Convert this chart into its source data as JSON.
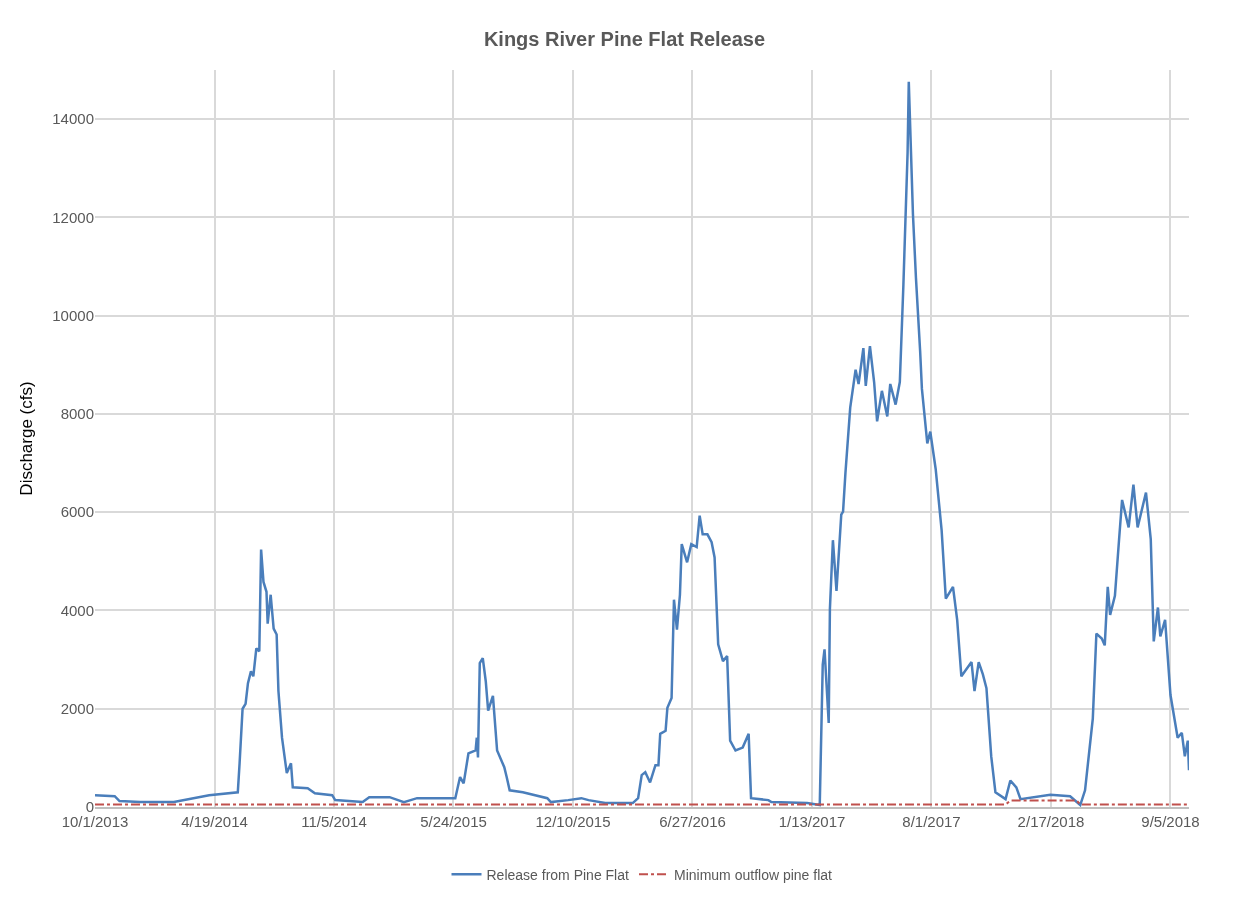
{
  "chart_data": {
    "type": "line",
    "title": "Kings River Pine Flat Release",
    "ylabel": "Discharge (cfs)",
    "xlim": [
      "2013-10-01",
      "2018-10-06"
    ],
    "ylim": [
      0,
      15000
    ],
    "xticks": [
      {
        "value": "2013-10-01",
        "label": "10/1/2013"
      },
      {
        "value": "2014-04-19",
        "label": "4/19/2014"
      },
      {
        "value": "2014-11-05",
        "label": "11/5/2014"
      },
      {
        "value": "2015-05-24",
        "label": "5/24/2015"
      },
      {
        "value": "2015-12-10",
        "label": "12/10/2015"
      },
      {
        "value": "2016-06-27",
        "label": "6/27/2016"
      },
      {
        "value": "2017-01-13",
        "label": "1/13/2017"
      },
      {
        "value": "2017-08-01",
        "label": "8/1/2017"
      },
      {
        "value": "2018-02-17",
        "label": "2/17/2018"
      },
      {
        "value": "2018-09-05",
        "label": "9/5/2018"
      }
    ],
    "yticks": [
      0,
      2000,
      4000,
      6000,
      8000,
      10000,
      12000,
      14000
    ],
    "grid": true,
    "legend": "bottom",
    "series": [
      {
        "name": "Release from Pine Flat",
        "color": "#4a7ebb",
        "line_style": "solid",
        "x": [
          "2013-10-01",
          "2013-11-03",
          "2013-11-11",
          "2013-12-16",
          "2014-02-10",
          "2014-04-10",
          "2014-05-28",
          "2014-05-31",
          "2014-06-05",
          "2014-06-10",
          "2014-06-14",
          "2014-06-19",
          "2014-06-23",
          "2014-06-28",
          "2014-07-03",
          "2014-07-06",
          "2014-07-10",
          "2014-07-15",
          "2014-07-17",
          "2014-07-22",
          "2014-07-27",
          "2014-08-01",
          "2014-08-04",
          "2014-08-10",
          "2014-08-18",
          "2014-08-25",
          "2014-08-28",
          "2014-09-22",
          "2014-10-04",
          "2014-11-02",
          "2014-11-07",
          "2014-12-23",
          "2015-01-03",
          "2015-02-06",
          "2015-03-02",
          "2015-03-24",
          "2015-05-27",
          "2015-06-04",
          "2015-06-10",
          "2015-06-18",
          "2015-06-30",
          "2015-07-02",
          "2015-07-04",
          "2015-07-07",
          "2015-07-12",
          "2015-07-17",
          "2015-07-21",
          "2015-07-29",
          "2015-08-05",
          "2015-08-17",
          "2015-08-21",
          "2015-08-26",
          "2015-09-17",
          "2015-10-28",
          "2015-11-03",
          "2015-12-02",
          "2015-12-24",
          "2016-01-05",
          "2016-02-02",
          "2016-03-19",
          "2016-03-28",
          "2016-04-03",
          "2016-04-09",
          "2016-04-17",
          "2016-04-26",
          "2016-05-01",
          "2016-05-04",
          "2016-05-13",
          "2016-05-16",
          "2016-05-23",
          "2016-05-27",
          "2016-06-01",
          "2016-06-06",
          "2016-06-09",
          "2016-06-18",
          "2016-06-25",
          "2016-07-04",
          "2016-07-09",
          "2016-07-14",
          "2016-07-22",
          "2016-07-29",
          "2016-08-03",
          "2016-08-09",
          "2016-08-17",
          "2016-08-24",
          "2016-08-29",
          "2016-09-07",
          "2016-09-19",
          "2016-09-29",
          "2016-10-03",
          "2016-11-01",
          "2016-11-06",
          "2017-01-05",
          "2017-01-26",
          "2017-01-31",
          "2017-02-03",
          "2017-02-10",
          "2017-02-12",
          "2017-02-17",
          "2017-02-23",
          "2017-03-03",
          "2017-03-06",
          "2017-03-10",
          "2017-03-18",
          "2017-03-27",
          "2017-04-01",
          "2017-04-09",
          "2017-04-13",
          "2017-04-20",
          "2017-04-27",
          "2017-05-02",
          "2017-05-10",
          "2017-05-19",
          "2017-05-24",
          "2017-06-02",
          "2017-06-09",
          "2017-06-15",
          "2017-06-22",
          "2017-06-24",
          "2017-07-01",
          "2017-07-06",
          "2017-07-13",
          "2017-07-16",
          "2017-07-25",
          "2017-07-30",
          "2017-08-08",
          "2017-08-18",
          "2017-08-25",
          "2017-09-06",
          "2017-09-13",
          "2017-09-20",
          "2017-10-07",
          "2017-10-12",
          "2017-10-19",
          "2017-10-26",
          "2017-11-01",
          "2017-11-09",
          "2017-11-16",
          "2017-12-03",
          "2017-12-11",
          "2017-12-21",
          "2017-12-28",
          "2018-02-16",
          "2018-03-21",
          "2018-04-07",
          "2018-04-15",
          "2018-04-28",
          "2018-05-04",
          "2018-05-13",
          "2018-05-18",
          "2018-05-23",
          "2018-05-27",
          "2018-06-04",
          "2018-06-11",
          "2018-06-16",
          "2018-06-27",
          "2018-07-05",
          "2018-07-12",
          "2018-07-26",
          "2018-08-03",
          "2018-08-08",
          "2018-08-15",
          "2018-08-19",
          "2018-08-27",
          "2018-09-05",
          "2018-09-17",
          "2018-09-24",
          "2018-09-29",
          "2018-10-04",
          "2018-10-06"
        ],
        "values": [
          240,
          220,
          120,
          100,
          100,
          240,
          300,
          890,
          2000,
          2100,
          2520,
          2760,
          2660,
          3230,
          3170,
          5240,
          4580,
          4380,
          3730,
          4320,
          3630,
          3510,
          2360,
          1410,
          690,
          890,
          400,
          380,
          280,
          240,
          140,
          100,
          200,
          200,
          100,
          180,
          180,
          610,
          480,
          1090,
          1150,
          1410,
          1010,
          2930,
          3030,
          2560,
          1960,
          2260,
          1150,
          810,
          610,
          340,
          300,
          180,
          100,
          140,
          180,
          140,
          80,
          80,
          180,
          650,
          710,
          500,
          850,
          850,
          1490,
          1550,
          2020,
          2220,
          4220,
          3610,
          4320,
          5350,
          4980,
          5350,
          5290,
          5930,
          5550,
          5550,
          5390,
          5080,
          3310,
          2970,
          3070,
          1350,
          1150,
          1210,
          1490,
          180,
          140,
          100,
          80,
          40,
          2900,
          3210,
          1710,
          4030,
          5430,
          4400,
          5950,
          6010,
          6800,
          8130,
          8900,
          8610,
          9340,
          8570,
          9380,
          8650,
          7850,
          8470,
          7950,
          8610,
          8190,
          8650,
          10630,
          13310,
          14760,
          12060,
          10770,
          9280,
          8510,
          7400,
          7640,
          6880,
          5630,
          4240,
          4480,
          3810,
          2660,
          2950,
          2360,
          2950,
          2700,
          2420,
          1030,
          300,
          160,
          540,
          400,
          160,
          250,
          220,
          40,
          340,
          1800,
          3530,
          3430,
          3290,
          4480,
          3910,
          4300,
          5450,
          6250,
          5690,
          6560,
          5690,
          6400,
          5450,
          3370,
          4060,
          3470,
          3810,
          2280,
          1410,
          1510,
          1030,
          1350,
          750
        ]
      },
      {
        "name": "Minimum outflow pine flat",
        "color": "#c0504d",
        "line_style": "dashdot",
        "x": [
          "2013-10-01",
          "2017-12-03",
          "2017-12-11",
          "2018-04-01",
          "2018-04-07",
          "2018-10-06"
        ],
        "values": [
          50,
          50,
          130,
          130,
          50,
          50
        ]
      }
    ]
  }
}
